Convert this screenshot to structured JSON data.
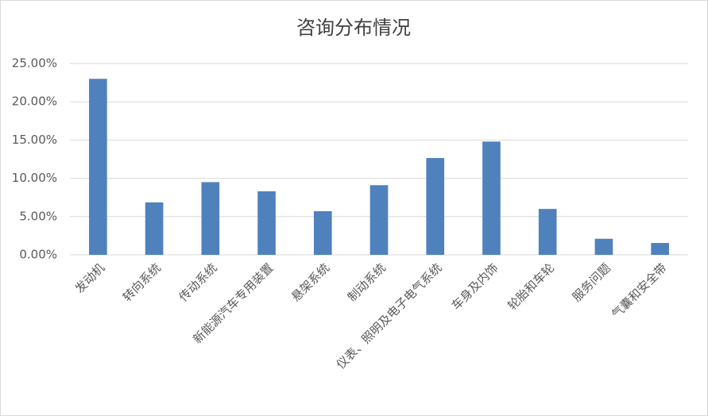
{
  "chart_data": {
    "type": "bar",
    "title": "咨询分布情况",
    "categories": [
      "发动机",
      "转向系统",
      "传动系统",
      "新能源汽车专用装置",
      "悬架系统",
      "制动系统",
      "仪表、照明及电子电气系统",
      "车身及内饰",
      "轮胎和车轮",
      "服务问题",
      "气囊和安全带"
    ],
    "values": [
      23.0,
      6.85,
      9.5,
      8.3,
      5.7,
      9.1,
      12.65,
      14.8,
      6.0,
      2.1,
      1.55
    ],
    "color": "#4f81bd",
    "ylim": [
      0,
      25
    ],
    "yticks": [
      {
        "value": 0,
        "label": "0.00%"
      },
      {
        "value": 5,
        "label": "5.00%"
      },
      {
        "value": 10,
        "label": "10.00%"
      },
      {
        "value": 15,
        "label": "15.00%"
      },
      {
        "value": 20,
        "label": "20.00%"
      },
      {
        "value": 25,
        "label": "25.00%"
      }
    ],
    "grid": true
  }
}
